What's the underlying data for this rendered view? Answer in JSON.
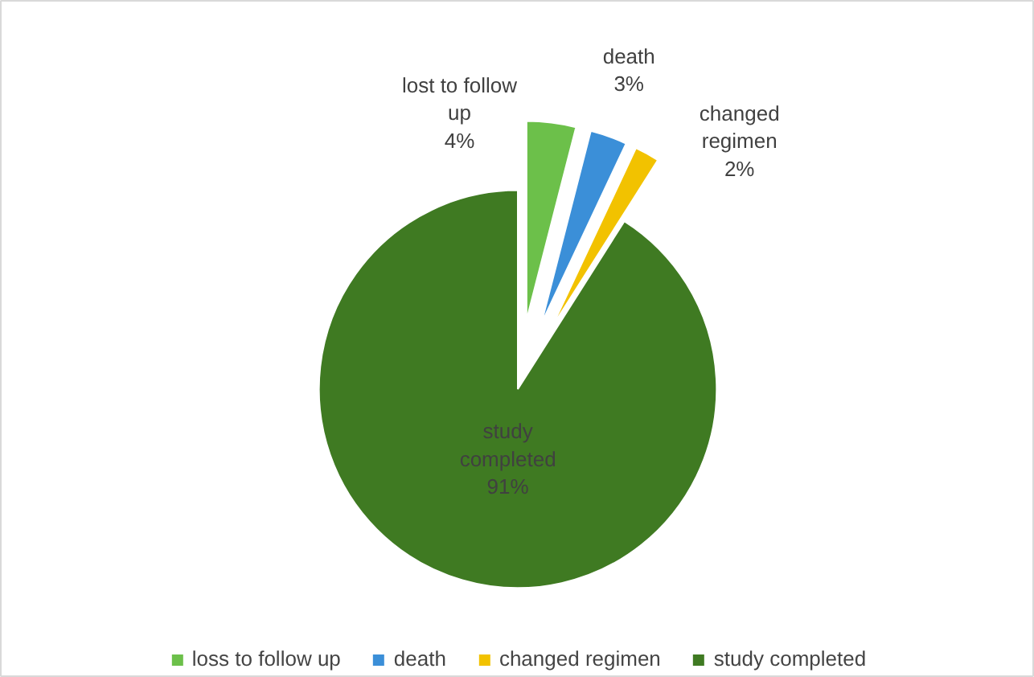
{
  "chart_data": {
    "type": "pie",
    "categories": [
      "loss to follow up",
      "death",
      "changed regimen",
      "study completed"
    ],
    "values": [
      4,
      3,
      2,
      91
    ],
    "colors": [
      "#6cc04a",
      "#3b8fd8",
      "#f2c200",
      "#3f7a22"
    ],
    "value_labels": [
      "lost to follow\nup\n4%",
      "death\n3%",
      "changed\nregimen\n2%",
      "study\ncompleted\n91%"
    ],
    "legend": "bottom"
  }
}
